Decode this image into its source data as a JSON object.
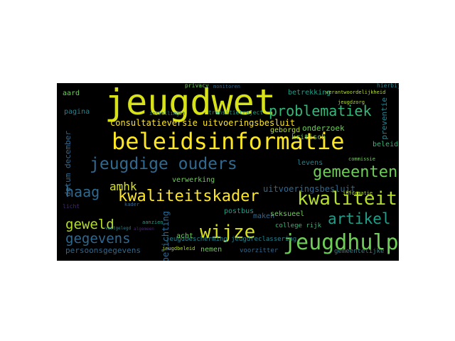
{
  "image_kind": "word cloud",
  "background": "#000000",
  "palette": {
    "yellow": "#fde725",
    "lime": "#b5de2b",
    "green": "#6ece58",
    "teal_green": "#35b779",
    "teal": "#1f9e89",
    "cyan": "#26828e",
    "blue": "#31688e",
    "indigo": "#3e4989",
    "purple": "#482878",
    "dark_purple": "#440154"
  },
  "words": {
    "jeugdwet": "jeugdwet",
    "beleidsinformatie": "beleidsinformatie",
    "jeugdige_ouders": "jeugdige ouders",
    "kwaliteitskader": "kwaliteitskader",
    "kwaliteit": "kwaliteit",
    "jeugdhulp": "jeugdhulp",
    "wijze": "wijze",
    "gemeenten": "gemeenten",
    "problematiek": "problematiek",
    "artikel": "artikel",
    "haag": "haag",
    "geweld": "geweld",
    "gegevens": "gegevens",
    "amhk": "amhk",
    "consultatieversie": "consultatieversie uitvoeringsbesluit",
    "uitvoeringsbesluit": "uitvoeringsbesluit",
    "persoonsgegevens": "persoonsgegevens",
    "toelichting": "toelichting",
    "datum_december": "datum december",
    "onderzoek": "onderzoek",
    "geborgd": "geborgd",
    "kritisch": "kritisch",
    "betrekking": "betrekking",
    "pagina": "pagina",
    "aard": "aard",
    "beleid": "beleid",
    "jeugdbescherming": "jeugdbescherming jeugdreclassering",
    "verwerking": "verwerking",
    "maken": "maken",
    "acht": "acht",
    "nemen": "nemen",
    "postbus": "postbus",
    "seksueel": "seksueel",
    "college_rijk": "college rijk",
    "voorzitter": "voorzitter",
    "gemeentelijke": "gemeentelijke",
    "privacy": "privacy",
    "monitoren": "monitoren",
    "verantwoordelijkheid": "verantwoordelijkheid",
    "transitiearrangement": "transitietraject",
    "prevention": "preventie",
    "levens": "levens",
    "commissie": "commissie",
    "informatie": "informatie",
    "hierbij": "hierbij",
    "jeugdzorg": "jeugdzorg",
    "jeugdbeleid": "jeugdbeleid",
    "instellingen": "instellingen",
    "kader": "kader",
    "aanzien": "aanzien",
    "vastgelegd": "vastgelegd",
    "algemeen": "algemeen",
    "licht": "licht"
  }
}
